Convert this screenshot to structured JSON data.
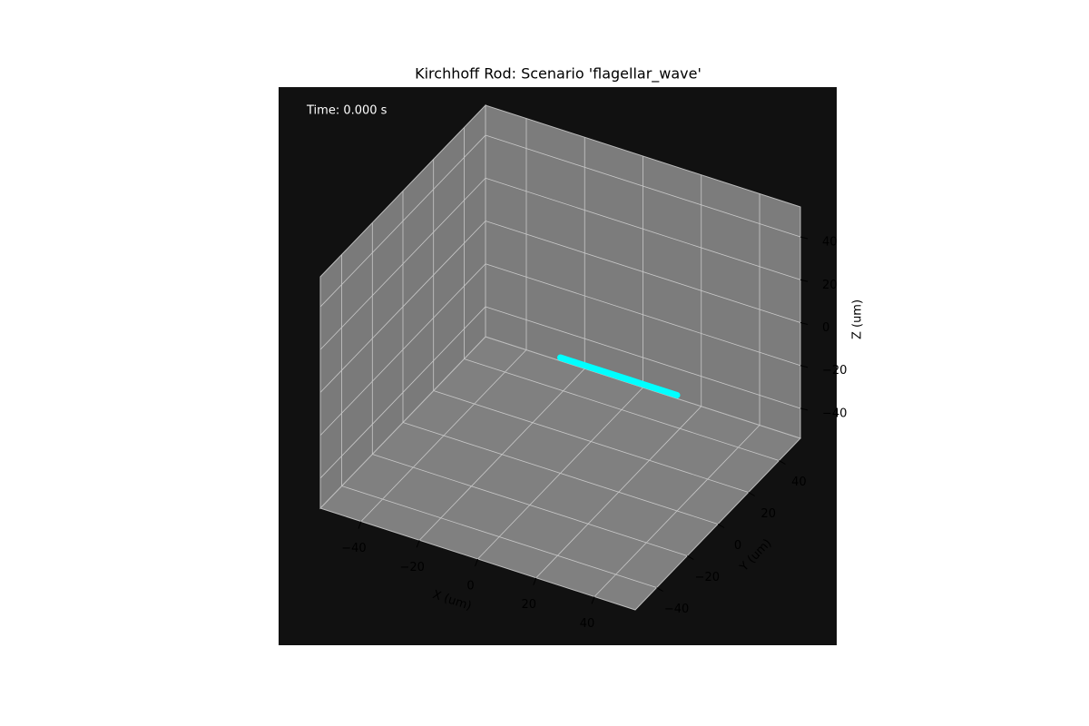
{
  "chart_data": {
    "type": "line3d",
    "title": "Kirchhoff Rod: Scenario 'flagellar_wave'",
    "annotation": "Time: 0.000 s",
    "xlabel": "X (um)",
    "ylabel": "Y (um)",
    "zlabel": "Z (um)",
    "xlim": [
      -54,
      54
    ],
    "ylim": [
      -54,
      54
    ],
    "zlim": [
      -54,
      54
    ],
    "xticks": [
      {
        "value": -40,
        "label": "−40"
      },
      {
        "value": -20,
        "label": "−20"
      },
      0,
      20,
      40
    ],
    "yticks": [
      {
        "value": -40,
        "label": "−40"
      },
      {
        "value": -20,
        "label": "−20"
      },
      0,
      20,
      40
    ],
    "zticks": [
      {
        "value": -40,
        "label": "−40"
      },
      {
        "value": -20,
        "label": "−20"
      },
      0,
      20,
      40
    ],
    "grid": true,
    "series": [
      {
        "color": "#00ffff",
        "x": [
          0,
          4,
          8,
          12,
          16,
          20,
          24,
          28,
          32,
          36,
          40
        ],
        "y": [
          0,
          0,
          0,
          0,
          0,
          0,
          0,
          0,
          0,
          0,
          0
        ],
        "z": [
          0,
          0,
          0,
          0,
          0,
          0,
          0,
          0,
          0,
          0,
          0
        ]
      }
    ]
  }
}
